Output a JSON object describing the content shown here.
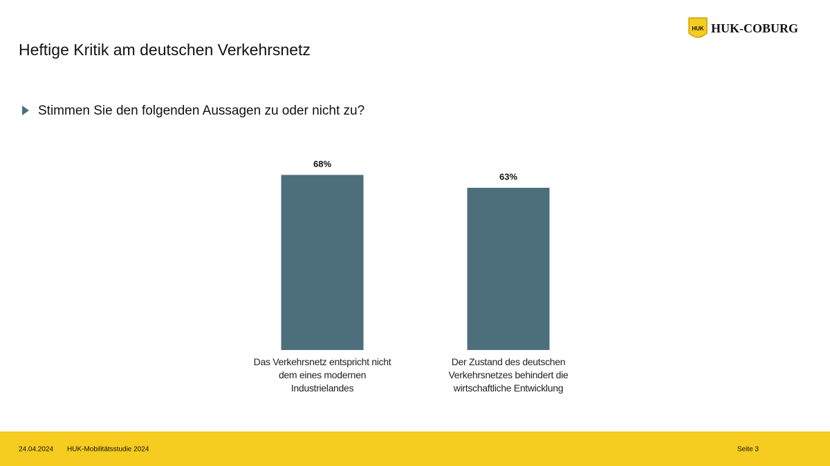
{
  "slide": {
    "title": "Heftige Kritik am deutschen Verkehrsnetz",
    "question": "Stimmen Sie den folgenden Aussagen zu oder nicht zu?",
    "logo_badge": "HUK",
    "logo_text": "HUK-COBURG",
    "footer_date": "24.04.2024",
    "footer_study": "HUK-Mobilitätsstudie 2024",
    "footer_page": "Seite 3"
  },
  "chart_data": {
    "type": "bar",
    "categories": [
      "Das Verkehrsnetz entspricht nicht dem eines modernen Industrielandes",
      "Der Zustand des deutschen Verkehrsnetzes behindert die wirtschaftliche Entwicklung"
    ],
    "values": [
      68,
      63
    ],
    "value_labels": [
      "68%",
      "63%"
    ],
    "color": "#4d6f7c"
  }
}
